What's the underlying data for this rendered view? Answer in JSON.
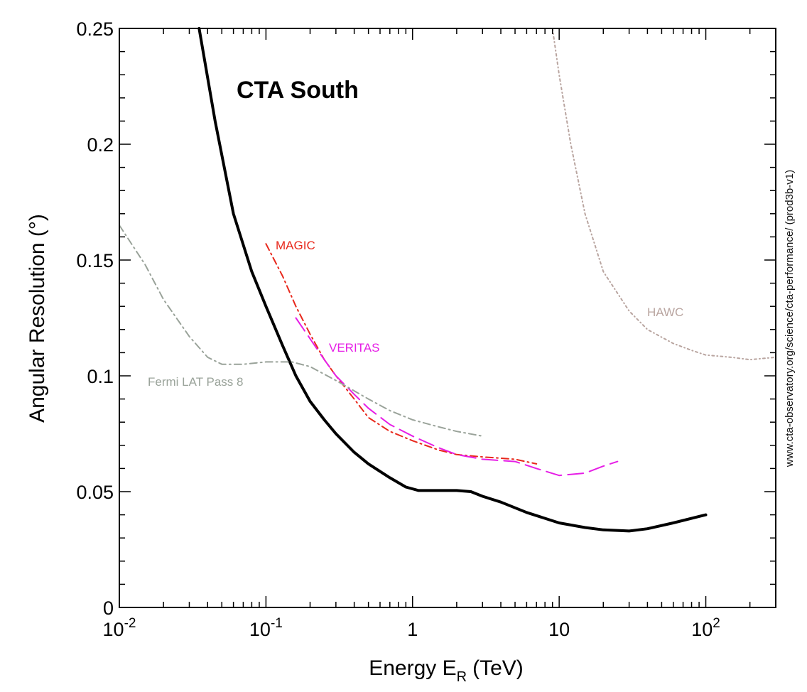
{
  "chart_data": {
    "type": "line",
    "title": "CTA South",
    "xlabel": "Energy E",
    "xlabel_subscript": "R",
    "xlabel_unit": "(TeV)",
    "ylabel": "Angular Resolution (°)",
    "credit": "www.cta-observatory.org/science/cta-performance/ (prod3b-v1)",
    "x_scale": "log",
    "xlim": [
      0.01,
      300
    ],
    "ylim": [
      0,
      0.25
    ],
    "grid": false,
    "x_ticks": [
      {
        "value": 0.01,
        "base": "10",
        "exp": "-2"
      },
      {
        "value": 0.1,
        "base": "10",
        "exp": "-1"
      },
      {
        "value": 1,
        "base": "1",
        "exp": ""
      },
      {
        "value": 10,
        "base": "10",
        "exp": ""
      },
      {
        "value": 100,
        "base": "10",
        "exp": "2"
      }
    ],
    "y_ticks": [
      {
        "value": 0,
        "label": "0"
      },
      {
        "value": 0.05,
        "label": "0.05"
      },
      {
        "value": 0.1,
        "label": "0.1"
      },
      {
        "value": 0.15,
        "label": "0.15"
      },
      {
        "value": 0.2,
        "label": "0.2"
      },
      {
        "value": 0.25,
        "label": "0.25"
      }
    ],
    "series": [
      {
        "name": "CTA South",
        "color": "#000000",
        "style": "solid",
        "label_visible": false,
        "x": [
          0.035,
          0.045,
          0.06,
          0.08,
          0.1,
          0.13,
          0.16,
          0.2,
          0.25,
          0.3,
          0.4,
          0.5,
          0.7,
          0.9,
          1.1,
          1.5,
          2.0,
          2.5,
          3.0,
          4.0,
          6.0,
          10,
          15,
          20,
          30,
          40,
          60,
          100
        ],
        "y": [
          0.25,
          0.21,
          0.17,
          0.145,
          0.13,
          0.113,
          0.1,
          0.089,
          0.081,
          0.075,
          0.067,
          0.062,
          0.056,
          0.052,
          0.0505,
          0.0505,
          0.0505,
          0.05,
          0.048,
          0.0455,
          0.041,
          0.0365,
          0.0345,
          0.0335,
          0.033,
          0.034,
          0.0365,
          0.04
        ]
      },
      {
        "name": "MAGIC",
        "color": "#e8281c",
        "style": "dashdot",
        "label_visible": true,
        "x": [
          0.1,
          0.13,
          0.16,
          0.2,
          0.25,
          0.3,
          0.4,
          0.5,
          0.7,
          1.0,
          1.5,
          2.0,
          3.0,
          5.0,
          7.0
        ],
        "y": [
          0.157,
          0.143,
          0.13,
          0.118,
          0.107,
          0.1,
          0.09,
          0.082,
          0.076,
          0.072,
          0.068,
          0.066,
          0.065,
          0.064,
          0.062
        ]
      },
      {
        "name": "VERITAS",
        "color": "#e61ee6",
        "style": "longdash",
        "label_visible": true,
        "x": [
          0.16,
          0.2,
          0.25,
          0.3,
          0.4,
          0.5,
          0.7,
          1.0,
          1.5,
          2.0,
          3.0,
          5.0,
          7.0,
          10,
          15,
          20,
          25
        ],
        "y": [
          0.125,
          0.116,
          0.107,
          0.1,
          0.092,
          0.086,
          0.079,
          0.074,
          0.069,
          0.066,
          0.064,
          0.063,
          0.06,
          0.057,
          0.058,
          0.061,
          0.063
        ]
      },
      {
        "name": "Fermi LAT Pass 8",
        "color": "#9aa39a",
        "style": "dashdot",
        "label_visible": true,
        "x": [
          0.01,
          0.015,
          0.02,
          0.03,
          0.04,
          0.05,
          0.07,
          0.1,
          0.15,
          0.2,
          0.3,
          0.5,
          0.7,
          1.0,
          1.5,
          2.0,
          3.0
        ],
        "y": [
          0.165,
          0.148,
          0.133,
          0.117,
          0.108,
          0.105,
          0.105,
          0.106,
          0.106,
          0.104,
          0.098,
          0.09,
          0.085,
          0.081,
          0.078,
          0.076,
          0.074
        ]
      },
      {
        "name": "HAWC",
        "color": "#b9a5a0",
        "style": "dotted",
        "label_visible": true,
        "x": [
          9,
          10,
          12,
          15,
          20,
          30,
          40,
          60,
          80,
          100,
          150,
          200,
          300
        ],
        "y": [
          0.25,
          0.23,
          0.2,
          0.17,
          0.145,
          0.128,
          0.12,
          0.114,
          0.111,
          0.109,
          0.108,
          0.107,
          0.108
        ]
      }
    ]
  }
}
